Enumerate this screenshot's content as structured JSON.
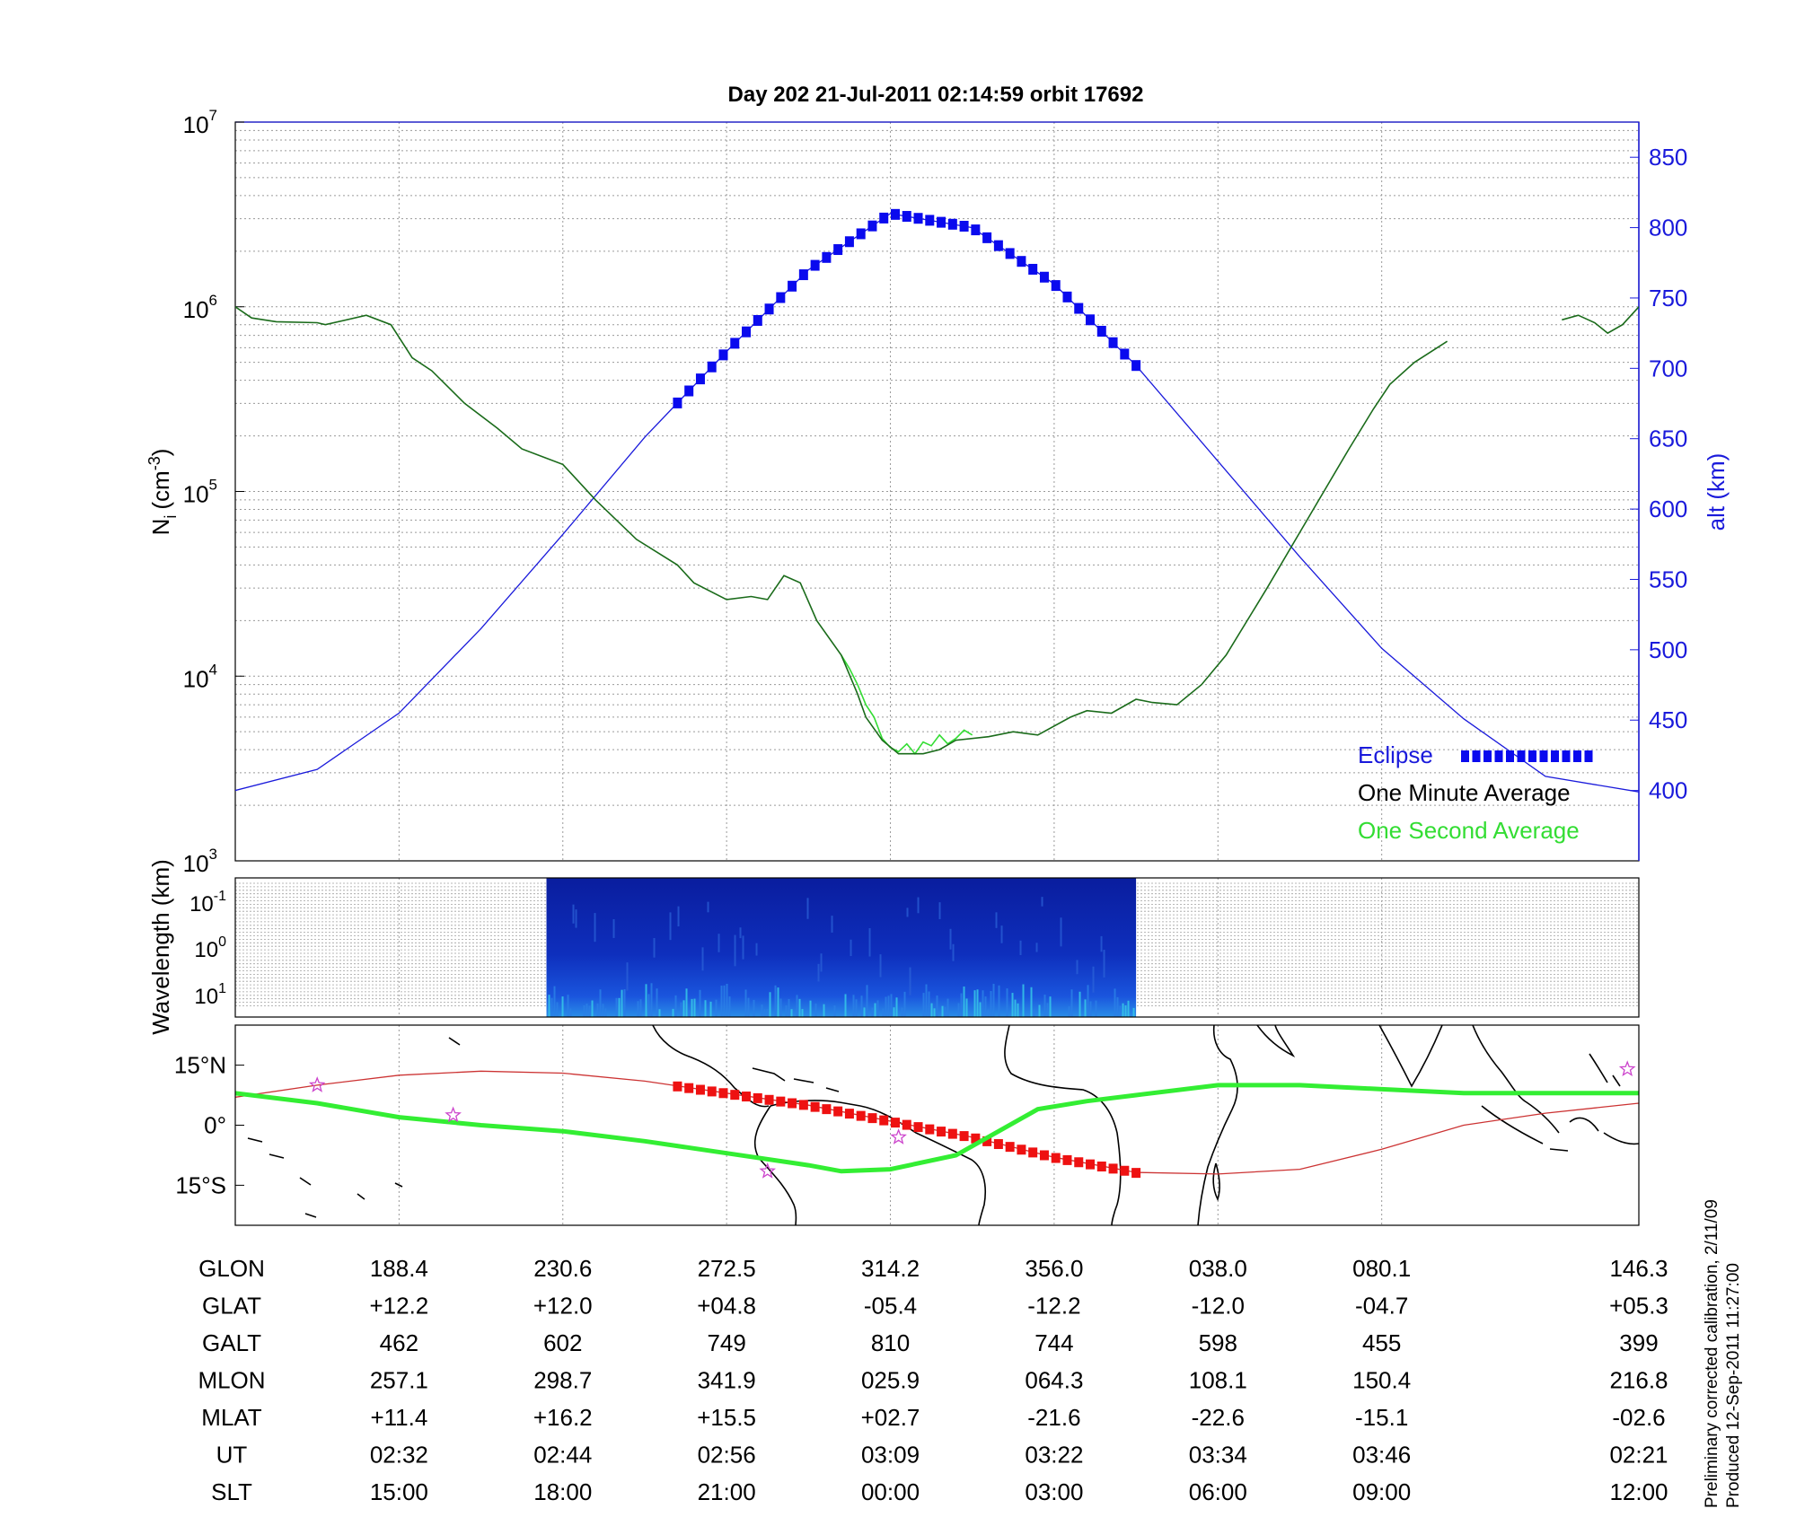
{
  "title": "Day 202  21-Jul-2011 02:14:59   orbit 17692",
  "side_note": [
    "Preliminary corrected calibration, 2/11/09",
    "Produced 12-Sep-2011 11:27:00"
  ],
  "colors": {
    "density_minute": "#1a6b1a",
    "density_second": "#33dd33",
    "altitude": "#1a1adb",
    "eclipse": "#0a0aee",
    "ground_track": "#33ee33",
    "orbit_track": "#cc3333",
    "eclipse_track": "#ee1111",
    "star": "#cc44cc"
  },
  "chart_data": [
    {
      "type": "line",
      "name": "ion_density_panel",
      "ylabel": "N_i (cm^-3)",
      "ylabel_main": "N",
      "ylabel_sub": "i",
      "ylabel_unit": "(cm",
      "ylabel_unit_sup": "-3",
      "ylabel_close": ")",
      "y_scale": "log",
      "ylim": [
        1000,
        10000000
      ],
      "ytick_labels": [
        {
          "value": 1000,
          "base": "10",
          "exp": "3"
        },
        {
          "value": 10000,
          "base": "10",
          "exp": "4"
        },
        {
          "value": 100000,
          "base": "10",
          "exp": "5"
        },
        {
          "value": 1000000,
          "base": "10",
          "exp": "6"
        },
        {
          "value": 10000000,
          "base": "10",
          "exp": "7"
        }
      ],
      "y2label": "alt (km)",
      "y2lim": [
        350,
        875
      ],
      "y2ticks": [
        400,
        450,
        500,
        550,
        600,
        650,
        700,
        750,
        800,
        850
      ],
      "xlim": [
        0,
        8.57
      ],
      "grid": true,
      "series": [
        {
          "name": "One Minute Average",
          "x": [
            0,
            0.1,
            0.25,
            0.5,
            0.55,
            0.8,
            0.95,
            1.08,
            1.2,
            1.4,
            1.6,
            1.75,
            2.0,
            2.2,
            2.45,
            2.7,
            2.8,
            3.0,
            3.15,
            3.25,
            3.35,
            3.45,
            3.55,
            3.7,
            3.8,
            3.85,
            3.95,
            4.05,
            4.2,
            4.3,
            4.4,
            4.6,
            4.75,
            4.9,
            5.1,
            5.2,
            5.35,
            5.5,
            5.6,
            5.75,
            5.9,
            6.05,
            6.3,
            6.6,
            6.8,
            6.95,
            7.05,
            7.2,
            7.4
          ],
          "y": [
            1000000,
            870000,
            830000,
            820000,
            800000,
            900000,
            800000,
            530000,
            450000,
            300000,
            220000,
            170000,
            140000,
            90000,
            55000,
            40000,
            32000,
            26000,
            27000,
            26000,
            35000,
            32000,
            20000,
            13000,
            8000,
            6000,
            4500,
            3800,
            3800,
            4000,
            4500,
            4700,
            5000,
            4800,
            6000,
            6500,
            6300,
            7500,
            7200,
            7000,
            9000,
            13000,
            30000,
            85000,
            170000,
            280000,
            380000,
            500000,
            650000
          ]
        },
        {
          "name": "One Minute Average",
          "x": [
            8.1,
            8.2,
            8.3,
            8.38,
            8.47,
            8.57
          ],
          "y": [
            850000,
            900000,
            820000,
            720000,
            800000,
            1000000
          ]
        },
        {
          "name": "One Second Average",
          "x": [
            3.7,
            3.75,
            3.8,
            3.85,
            3.9,
            3.95,
            4.0,
            4.05,
            4.1,
            4.15,
            4.2,
            4.25,
            4.3,
            4.35,
            4.4,
            4.45,
            4.5
          ],
          "y": [
            13000,
            11000,
            9000,
            7000,
            6000,
            4600,
            4100,
            3900,
            4300,
            3800,
            4400,
            4200,
            4800,
            4300,
            4600,
            5100,
            4800
          ]
        },
        {
          "name": "alt (km)",
          "axis": "right",
          "x": [
            0,
            0.5,
            1,
            1.5,
            2,
            2.5,
            3,
            3.5,
            4,
            4.5,
            5,
            5.5,
            6,
            6.5,
            7,
            7.5,
            8,
            8.57
          ],
          "y": [
            400,
            415,
            455,
            515,
            582,
            651,
            712,
            770,
            810,
            800,
            760,
            702,
            634,
            566,
            501,
            451,
            410,
            399
          ]
        }
      ],
      "eclipse_x": [
        2.7,
        5.5
      ],
      "legend": {
        "placement": "bottom-right",
        "entries": [
          {
            "label": "Eclipse",
            "color": "#1a1adb"
          },
          {
            "label": "One Minute Average",
            "color": "#000000"
          },
          {
            "label": "One Second Average",
            "color": "#33dd33"
          }
        ]
      }
    },
    {
      "type": "heatmap",
      "name": "wavelength_spectrogram",
      "ylabel": "Wavelength (km)",
      "ytick_labels": [
        {
          "base": "10",
          "exp": "-1"
        },
        {
          "base": "10",
          "exp": "0"
        },
        {
          "base": "10",
          "exp": "1"
        }
      ],
      "x_range": [
        1.9,
        5.5
      ],
      "colormap": "jet",
      "grid": true
    },
    {
      "type": "line",
      "name": "ground_track_map",
      "ytick_labels": [
        "15°N",
        "0°",
        "15°S"
      ],
      "ylim": [
        -25,
        25
      ],
      "xlim": [
        0,
        8.57
      ],
      "series": [
        {
          "name": "orbit track",
          "x": [
            0,
            0.5,
            1,
            1.5,
            2,
            2.5,
            3,
            3.5,
            4,
            4.5,
            5,
            5.5,
            6,
            6.5,
            7,
            7.5,
            8,
            8.57
          ],
          "y": [
            7,
            10,
            12.5,
            13.5,
            13,
            11,
            8,
            5,
            1,
            -3,
            -8,
            -11.8,
            -12.2,
            -11,
            -6,
            0,
            3,
            5.5
          ]
        },
        {
          "name": "ground track",
          "x": [
            0,
            0.5,
            1,
            1.5,
            2,
            2.5,
            3,
            3.5,
            3.7,
            4,
            4.4,
            4.9,
            5.2,
            5.5,
            6,
            6.5,
            7,
            7.5,
            8,
            8.57
          ],
          "y": [
            8,
            5.5,
            2,
            0,
            -1.5,
            -4,
            -7,
            -10,
            -11.5,
            -11,
            -7.5,
            4,
            6,
            7.5,
            10,
            10,
            9,
            8,
            8,
            8
          ]
        }
      ],
      "eclipse_x": [
        2.7,
        5.5
      ],
      "stars": [
        {
          "x": 0.5,
          "y": 10
        },
        {
          "x": 1.33,
          "y": 2.5
        },
        {
          "x": 3.25,
          "y": -11.5
        },
        {
          "x": 4.05,
          "y": -3
        },
        {
          "x": 8.5,
          "y": 14
        }
      ]
    }
  ],
  "orbit_table": {
    "rows": [
      {
        "label": "GLON",
        "values": [
          "188.4",
          "230.6",
          "272.5",
          "314.2",
          "356.0",
          "038.0",
          "080.1",
          "146.3"
        ]
      },
      {
        "label": "GLAT",
        "values": [
          "+12.2",
          "+12.0",
          "+04.8",
          "-05.4",
          "-12.2",
          "-12.0",
          "-04.7",
          "+05.3"
        ]
      },
      {
        "label": "GALT",
        "values": [
          "462",
          "602",
          "749",
          "810",
          "744",
          "598",
          "455",
          "399"
        ]
      },
      {
        "label": "MLON",
        "values": [
          "257.1",
          "298.7",
          "341.9",
          "025.9",
          "064.3",
          "108.1",
          "150.4",
          "216.8"
        ]
      },
      {
        "label": "MLAT",
        "values": [
          "+11.4",
          "+16.2",
          "+15.5",
          "+02.7",
          "-21.6",
          "-22.6",
          "-15.1",
          "-02.6"
        ]
      },
      {
        "label": "UT",
        "values": [
          "02:32",
          "02:44",
          "02:56",
          "03:09",
          "03:22",
          "03:34",
          "03:46",
          "02:21"
        ]
      },
      {
        "label": "SLT",
        "values": [
          "15:00",
          "18:00",
          "21:00",
          "00:00",
          "03:00",
          "06:00",
          "09:00",
          "12:00"
        ]
      }
    ]
  }
}
